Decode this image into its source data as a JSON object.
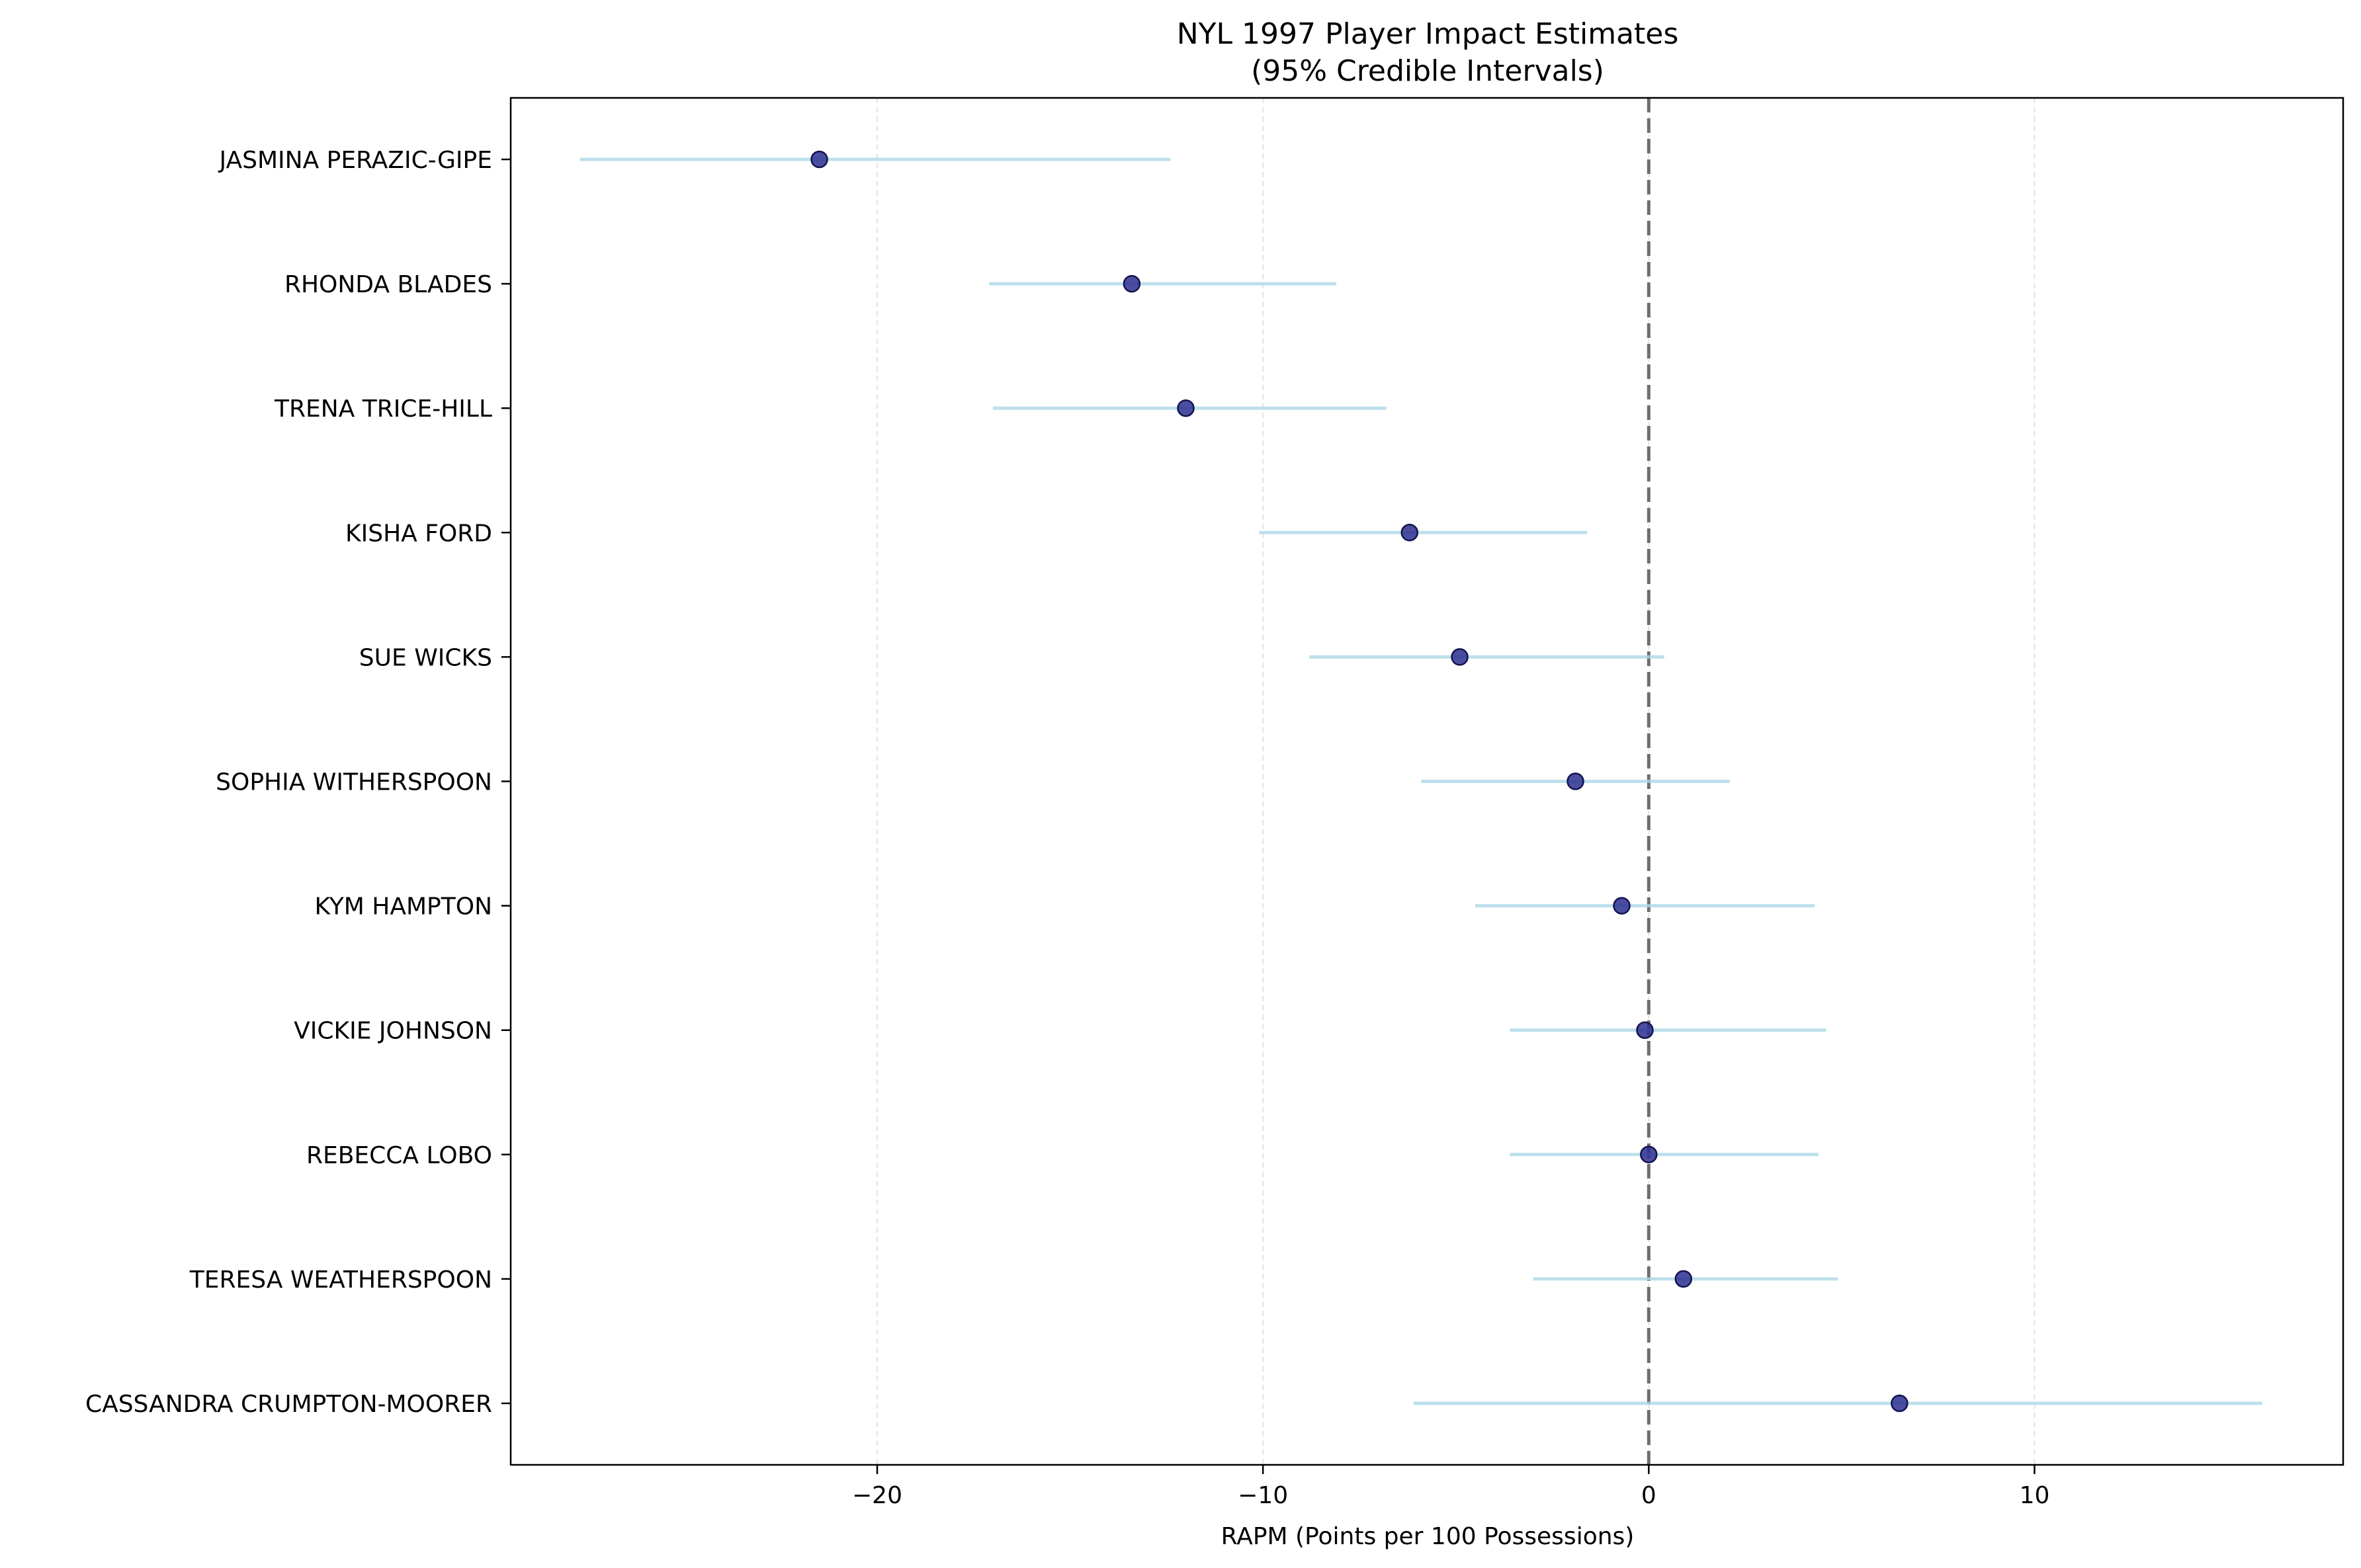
{
  "chart_data": {
    "type": "scatter",
    "title": "NYL 1997 Player Impact Estimates",
    "subtitle": "(95% Credible Intervals)",
    "xlabel": "RAPM (Points per 100 Possessions)",
    "ylabel": "",
    "xlim": [
      -29.5,
      18
    ],
    "x_ticks": [
      -20,
      -10,
      0,
      10
    ],
    "x_tick_labels": [
      "−20",
      "−10",
      "0",
      "10"
    ],
    "grid": "x-dashed",
    "reference_line_x": 0,
    "colors": {
      "point": "#2b2f8f",
      "interval": "#add8e6",
      "reference": "#6e6e6e",
      "grid": "#e3e3e3"
    },
    "players": [
      {
        "name": "JASMINA PERAZIC-GIPE",
        "estimate": -21.5,
        "lower": -27.7,
        "upper": -12.4
      },
      {
        "name": "RHONDA BLADES",
        "estimate": -13.4,
        "lower": -17.1,
        "upper": -8.1
      },
      {
        "name": "TRENA TRICE-HILL",
        "estimate": -12.0,
        "lower": -17.0,
        "upper": -6.8
      },
      {
        "name": "KISHA FORD",
        "estimate": -6.2,
        "lower": -10.1,
        "upper": -1.6
      },
      {
        "name": "SUE WICKS",
        "estimate": -4.9,
        "lower": -8.8,
        "upper": 0.4
      },
      {
        "name": "SOPHIA WITHERSPOON",
        "estimate": -1.9,
        "lower": -5.9,
        "upper": 2.1
      },
      {
        "name": "KYM HAMPTON",
        "estimate": -0.7,
        "lower": -4.5,
        "upper": 4.3
      },
      {
        "name": "VICKIE JOHNSON",
        "estimate": -0.1,
        "lower": -3.6,
        "upper": 4.6
      },
      {
        "name": "REBECCA LOBO",
        "estimate": 0.0,
        "lower": -3.6,
        "upper": 4.4
      },
      {
        "name": "TERESA WEATHERSPOON",
        "estimate": 0.9,
        "lower": -3.0,
        "upper": 4.9
      },
      {
        "name": "CASSANDRA CRUMPTON-MOORER",
        "estimate": 6.5,
        "lower": -6.1,
        "upper": 15.9
      }
    ]
  }
}
